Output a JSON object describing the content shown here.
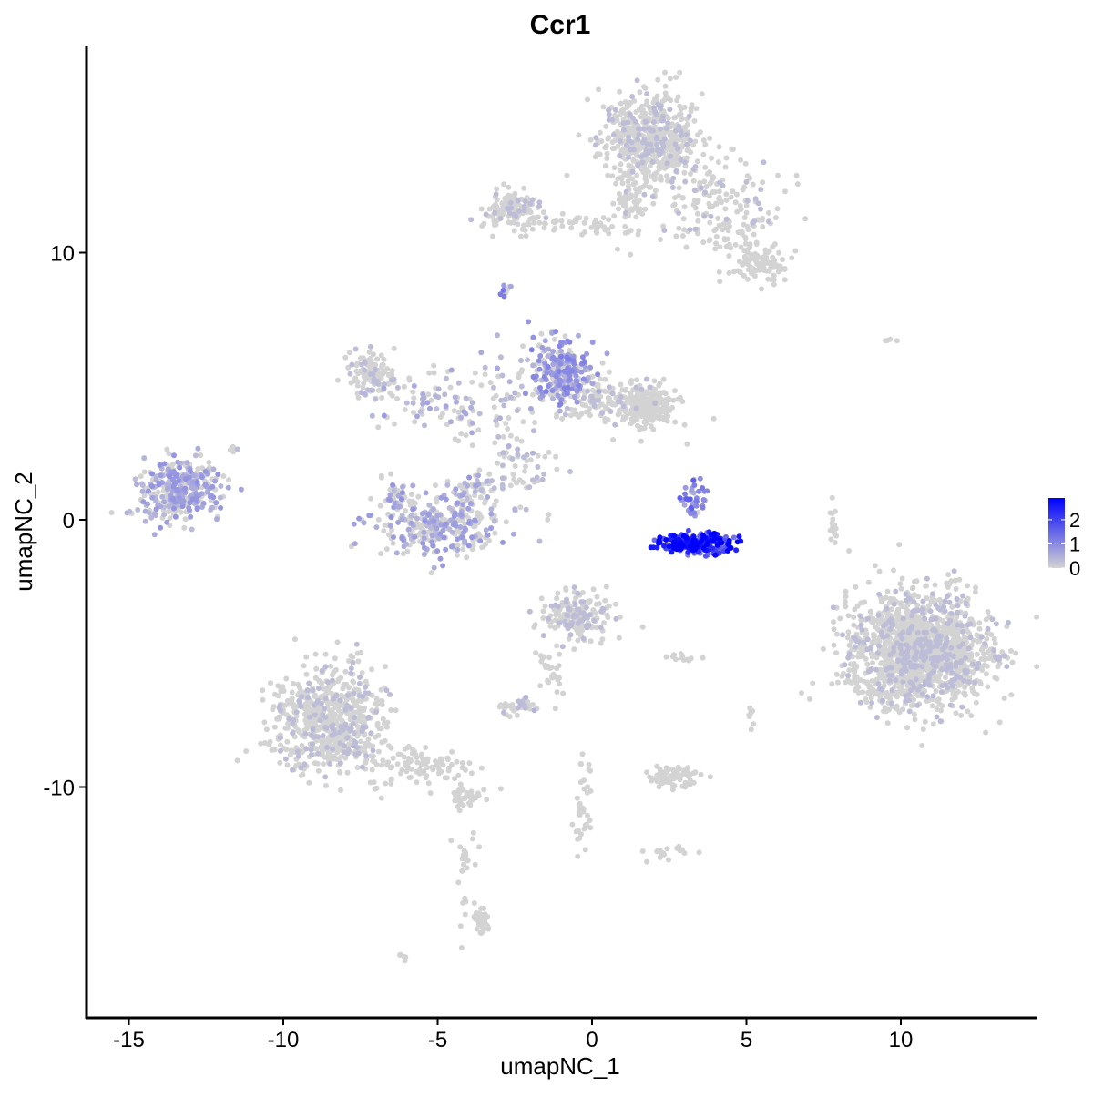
{
  "chart_data": {
    "type": "scatter",
    "title": "Ccr1",
    "xlabel": "umapNC_1",
    "ylabel": "umapNC_2",
    "xlim": [
      -16.4,
      14.4
    ],
    "ylim": [
      -18.6,
      17.75
    ],
    "xticks": [
      -15,
      -10,
      -5,
      0,
      5,
      10
    ],
    "yticks": [
      -10,
      0,
      10
    ],
    "grid": false,
    "legend": {
      "position": "right",
      "ticks": [
        0,
        1,
        2
      ],
      "max": 2.9,
      "low_color": "#d3d3d3",
      "high_color": "#0000ff"
    },
    "clusters": [
      {
        "cx": 1.9,
        "cy": 14.2,
        "sx": 0.8,
        "sy": 0.85,
        "n": 550,
        "expr": 0.02
      },
      {
        "cx": 3.8,
        "cy": 12.0,
        "sx": 1.2,
        "sy": 0.8,
        "n": 150,
        "expr": 0.02
      },
      {
        "cx": 4.8,
        "cy": 10.4,
        "sx": 0.6,
        "sy": 0.7,
        "n": 60,
        "expr": 0.0
      },
      {
        "cx": 5.6,
        "cy": 9.5,
        "sx": 0.4,
        "sy": 0.3,
        "n": 80,
        "expr": 0.0
      },
      {
        "cx": -2.6,
        "cy": 11.6,
        "sx": 0.45,
        "sy": 0.35,
        "n": 120,
        "expr": 0.02
      },
      {
        "cx": -0.2,
        "cy": 11.1,
        "sx": 1.0,
        "sy": 0.2,
        "n": 50,
        "expr": 0.0
      },
      {
        "cx": 1.2,
        "cy": 11.8,
        "sx": 0.2,
        "sy": 0.7,
        "n": 50,
        "expr": 0.0
      },
      {
        "cx": -2.8,
        "cy": 8.7,
        "sx": 0.12,
        "sy": 0.15,
        "n": 10,
        "expr": 1.1
      },
      {
        "cx": -13.4,
        "cy": 1.1,
        "sx": 0.65,
        "sy": 0.55,
        "n": 350,
        "expr": 0.6
      },
      {
        "cx": -11.6,
        "cy": 2.7,
        "sx": 0.1,
        "sy": 0.1,
        "n": 5,
        "expr": 0.2
      },
      {
        "cx": -5.0,
        "cy": -0.2,
        "sx": 1.0,
        "sy": 0.6,
        "n": 300,
        "expr": 0.55
      },
      {
        "cx": -4.0,
        "cy": 1.0,
        "sx": 0.35,
        "sy": 0.5,
        "n": 50,
        "expr": 0.5
      },
      {
        "cx": -6.3,
        "cy": 0.8,
        "sx": 0.25,
        "sy": 0.4,
        "n": 40,
        "expr": 0.6
      },
      {
        "cx": -7.2,
        "cy": 5.4,
        "sx": 0.35,
        "sy": 0.45,
        "n": 110,
        "expr": 0.1
      },
      {
        "cx": -5.5,
        "cy": 4.5,
        "sx": 0.9,
        "sy": 0.6,
        "n": 70,
        "expr": 0.5
      },
      {
        "cx": -3.0,
        "cy": 4.5,
        "sx": 0.9,
        "sy": 1.0,
        "n": 80,
        "expr": 0.4
      },
      {
        "cx": -1.0,
        "cy": 5.5,
        "sx": 0.45,
        "sy": 0.6,
        "n": 260,
        "expr": 0.8
      },
      {
        "cx": 0.4,
        "cy": 4.5,
        "sx": 0.7,
        "sy": 0.4,
        "n": 100,
        "expr": 0.2
      },
      {
        "cx": 1.8,
        "cy": 4.2,
        "sx": 0.5,
        "sy": 0.45,
        "n": 200,
        "expr": 0.0
      },
      {
        "cx": -2.5,
        "cy": 2.0,
        "sx": 0.7,
        "sy": 0.8,
        "n": 60,
        "expr": 0.25
      },
      {
        "cx": 3.4,
        "cy": -0.9,
        "sx": 0.55,
        "sy": 0.2,
        "n": 230,
        "expr": 2.2
      },
      {
        "cx": 3.3,
        "cy": 0.8,
        "sx": 0.25,
        "sy": 0.35,
        "n": 40,
        "expr": 1.1
      },
      {
        "cx": 10.6,
        "cy": -4.9,
        "sx": 1.15,
        "sy": 1.05,
        "n": 1500,
        "expr": 0.05
      },
      {
        "cx": -0.5,
        "cy": -3.6,
        "sx": 0.5,
        "sy": 0.45,
        "n": 200,
        "expr": 0.1
      },
      {
        "cx": -1.4,
        "cy": -5.8,
        "sx": 0.2,
        "sy": 0.6,
        "n": 30,
        "expr": 0.0
      },
      {
        "cx": -8.5,
        "cy": -7.5,
        "sx": 0.9,
        "sy": 1.0,
        "n": 650,
        "expr": 0.02
      },
      {
        "cx": -5.5,
        "cy": -9.2,
        "sx": 0.9,
        "sy": 0.4,
        "n": 110,
        "expr": 0.0
      },
      {
        "cx": -4.1,
        "cy": -10.3,
        "sx": 0.25,
        "sy": 0.2,
        "n": 40,
        "expr": 0.0
      },
      {
        "cx": -4.1,
        "cy": -12.5,
        "sx": 0.2,
        "sy": 1.3,
        "n": 30,
        "expr": 0.0
      },
      {
        "cx": -3.6,
        "cy": -15.0,
        "sx": 0.15,
        "sy": 0.3,
        "n": 40,
        "expr": 0.0
      },
      {
        "cx": -2.4,
        "cy": -7.0,
        "sx": 0.25,
        "sy": 0.12,
        "n": 40,
        "expr": 0.3
      },
      {
        "cx": 2.6,
        "cy": -9.6,
        "sx": 0.45,
        "sy": 0.2,
        "n": 80,
        "expr": 0.0
      },
      {
        "cx": -0.3,
        "cy": -11.0,
        "sx": 0.15,
        "sy": 0.9,
        "n": 35,
        "expr": 0.0
      },
      {
        "cx": 2.4,
        "cy": -12.5,
        "sx": 0.3,
        "sy": 0.15,
        "n": 20,
        "expr": 0.0
      },
      {
        "cx": 2.9,
        "cy": -5.1,
        "sx": 0.3,
        "sy": 0.08,
        "n": 12,
        "expr": 0.0
      },
      {
        "cx": 7.8,
        "cy": -0.3,
        "sx": 0.06,
        "sy": 0.4,
        "n": 15,
        "expr": 0.0
      },
      {
        "cx": 9.7,
        "cy": 6.7,
        "sx": 0.2,
        "sy": 0.05,
        "n": 4,
        "expr": 0.0
      },
      {
        "cx": 5.1,
        "cy": -7.4,
        "sx": 0.1,
        "sy": 0.3,
        "n": 8,
        "expr": 0.0
      },
      {
        "cx": -6.1,
        "cy": -16.3,
        "sx": 0.1,
        "sy": 0.1,
        "n": 5,
        "expr": 0.0
      }
    ]
  }
}
